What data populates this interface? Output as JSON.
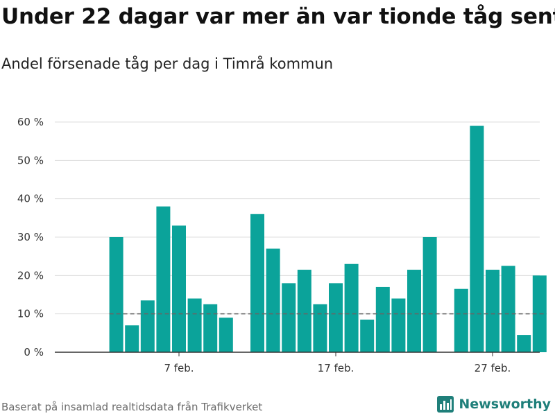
{
  "header": {
    "title": "Under 22 dagar var mer än var tionde tåg sent",
    "subtitle": "Andel försenade tåg per dag i Timrå kommun"
  },
  "footer": {
    "source": "Baserat på insamlad realtidsdata från Trafikverket",
    "brand": "Newsworthy",
    "brand_icon": "newsworthy-logo-icon"
  },
  "colors": {
    "bar": "#0ba39a",
    "grid": "#dddddd",
    "reference_line": "#666666",
    "axis": "#333333",
    "brand": "#1f7f7a"
  },
  "chart_data": {
    "type": "bar",
    "title": "Under 22 dagar var mer än var tionde tåg sent",
    "subtitle": "Andel försenade tåg per dag i Timrå kommun",
    "xlabel": "",
    "ylabel": "",
    "ylim": [
      0,
      60
    ],
    "y_ticks": [
      0,
      10,
      20,
      30,
      40,
      50,
      60
    ],
    "y_tick_labels": [
      "0 %",
      "10 %",
      "20 %",
      "30 %",
      "40 %",
      "50 %",
      "60 %"
    ],
    "x_ticks": [
      {
        "day": 7,
        "label": "7 feb."
      },
      {
        "day": 17,
        "label": "17 feb."
      },
      {
        "day": 27,
        "label": "27 feb."
      }
    ],
    "x_range_days": [
      0.9,
      29.9
    ],
    "grid": true,
    "reference_line": {
      "value": 10,
      "style": "dashed"
    },
    "days": [
      3,
      4,
      5,
      6,
      7,
      8,
      9,
      10,
      12,
      13,
      14,
      15,
      16,
      17,
      18,
      19,
      20,
      21,
      22,
      23,
      25,
      26,
      27,
      28,
      29,
      30
    ],
    "values": [
      30,
      7,
      13.5,
      38,
      33,
      14,
      12.5,
      9,
      36,
      27,
      18,
      21.5,
      12.5,
      18,
      23,
      8.5,
      17,
      14,
      21.5,
      30,
      16.5,
      59,
      21.5,
      22.5,
      4.5,
      20
    ]
  }
}
